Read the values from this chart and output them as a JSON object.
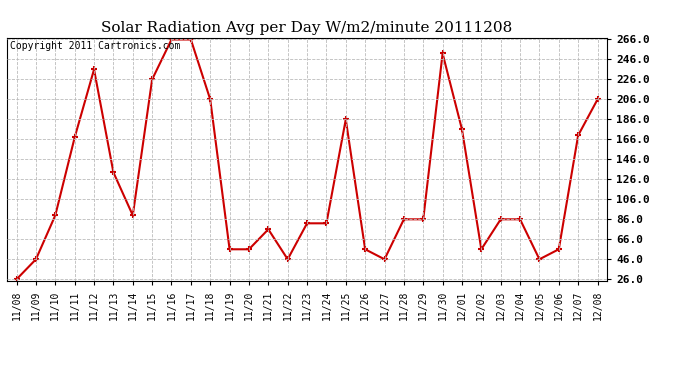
{
  "title": "Solar Radiation Avg per Day W/m2/minute 20111208",
  "copyright": "Copyright 2011 Cartronics.com",
  "x_labels": [
    "11/08",
    "11/09",
    "11/10",
    "11/11",
    "11/12",
    "11/13",
    "11/14",
    "11/15",
    "11/16",
    "11/17",
    "11/18",
    "11/19",
    "11/20",
    "11/21",
    "11/22",
    "11/23",
    "11/24",
    "11/25",
    "11/26",
    "11/27",
    "11/28",
    "11/29",
    "11/30",
    "12/01",
    "12/02",
    "12/03",
    "12/04",
    "12/05",
    "12/06",
    "12/07",
    "12/08"
  ],
  "y_values": [
    26,
    46,
    90,
    168,
    236,
    133,
    90,
    226,
    266,
    266,
    206,
    56,
    56,
    76,
    46,
    82,
    82,
    186,
    56,
    46,
    86,
    86,
    252,
    176,
    56,
    86,
    86,
    46,
    56,
    170,
    206
  ],
  "y_min": 26.0,
  "y_max": 266.0,
  "y_ticks": [
    26.0,
    46.0,
    66.0,
    86.0,
    106.0,
    126.0,
    146.0,
    166.0,
    186.0,
    206.0,
    226.0,
    246.0,
    266.0
  ],
  "line_color": "#cc0000",
  "marker": "+",
  "marker_size": 5,
  "marker_linewidth": 1.5,
  "line_width": 1.5,
  "bg_color": "#ffffff",
  "plot_bg_color": "#ffffff",
  "grid_color": "#bbbbbb",
  "grid_linestyle": "--",
  "title_fontsize": 11,
  "copyright_fontsize": 7,
  "tick_fontsize": 7,
  "ytick_fontsize": 8
}
